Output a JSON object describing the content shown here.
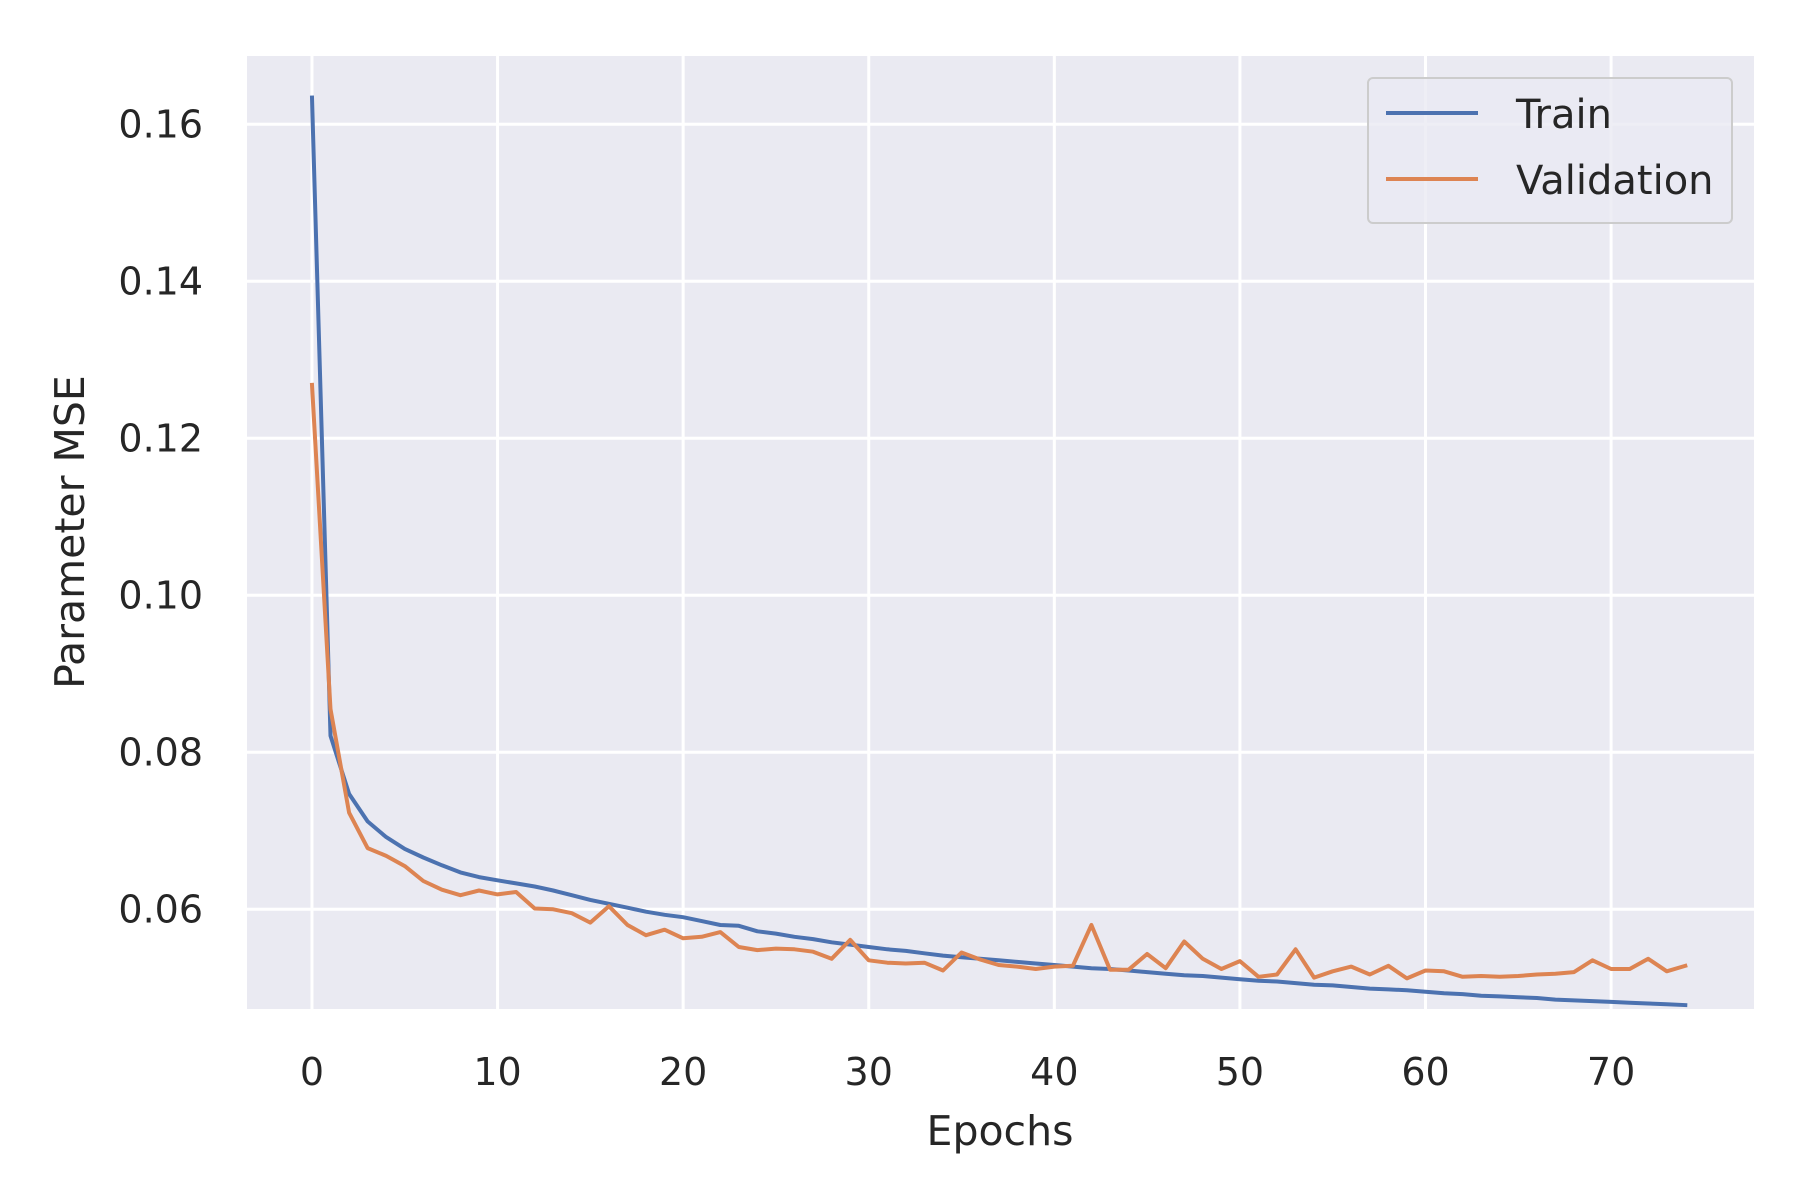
{
  "chart_data": {
    "type": "line",
    "xlabel": "Epochs",
    "ylabel": "Parameter MSE",
    "xlim": [
      -3.5,
      77.7
    ],
    "ylim": [
      0.0473,
      0.1687
    ],
    "xticks": [
      0,
      10,
      20,
      30,
      40,
      50,
      60,
      70
    ],
    "xtick_labels": [
      "0",
      "10",
      "20",
      "30",
      "40",
      "50",
      "60",
      "70"
    ],
    "yticks": [
      0.06,
      0.08,
      0.1,
      0.12,
      0.14,
      0.16
    ],
    "ytick_labels": [
      "0.06",
      "0.08",
      "0.10",
      "0.12",
      "0.14",
      "0.16"
    ],
    "grid": true,
    "legend_position": "top-right",
    "series": [
      {
        "name": "Train",
        "color": "#4c72b0",
        "x": [
          0,
          1,
          2,
          3,
          4,
          5,
          6,
          7,
          8,
          9,
          10,
          11,
          12,
          13,
          14,
          15,
          16,
          17,
          18,
          19,
          20,
          21,
          22,
          23,
          24,
          25,
          26,
          27,
          28,
          29,
          30,
          31,
          32,
          33,
          34,
          35,
          36,
          37,
          38,
          39,
          40,
          41,
          42,
          43,
          44,
          45,
          46,
          47,
          48,
          49,
          50,
          51,
          52,
          53,
          54,
          55,
          56,
          57,
          58,
          59,
          60,
          61,
          62,
          63,
          64,
          65,
          66,
          67,
          68,
          69,
          70,
          71,
          72,
          73,
          74
        ],
        "values": [
          0.1634,
          0.0821,
          0.0747,
          0.0712,
          0.0692,
          0.0677,
          0.0666,
          0.0656,
          0.0647,
          0.0641,
          0.0637,
          0.0633,
          0.0629,
          0.0624,
          0.0618,
          0.0612,
          0.0607,
          0.0602,
          0.0597,
          0.0593,
          0.059,
          0.0585,
          0.058,
          0.0579,
          0.0572,
          0.0569,
          0.0565,
          0.0562,
          0.0558,
          0.0555,
          0.0552,
          0.0549,
          0.0547,
          0.0544,
          0.0541,
          0.0539,
          0.0537,
          0.0535,
          0.0533,
          0.0531,
          0.0529,
          0.0527,
          0.0525,
          0.0524,
          0.0522,
          0.052,
          0.0518,
          0.0516,
          0.0515,
          0.0513,
          0.0511,
          0.0509,
          0.0508,
          0.0506,
          0.0504,
          0.0503,
          0.0501,
          0.0499,
          0.0498,
          0.0497,
          0.0495,
          0.0493,
          0.0492,
          0.049,
          0.0489,
          0.0488,
          0.0487,
          0.0485,
          0.0484,
          0.0483,
          0.0482,
          0.0481,
          0.048,
          0.0479,
          0.0478
        ]
      },
      {
        "name": "Validation",
        "color": "#dd8452",
        "x": [
          0,
          1,
          2,
          3,
          4,
          5,
          6,
          7,
          8,
          9,
          10,
          11,
          12,
          13,
          14,
          15,
          16,
          17,
          18,
          19,
          20,
          21,
          22,
          23,
          24,
          25,
          26,
          27,
          28,
          29,
          30,
          31,
          32,
          33,
          34,
          35,
          36,
          37,
          38,
          39,
          40,
          41,
          42,
          43,
          44,
          45,
          46,
          47,
          48,
          49,
          50,
          51,
          52,
          53,
          54,
          55,
          56,
          57,
          58,
          59,
          60,
          61,
          62,
          63,
          64,
          65,
          66,
          67,
          68,
          69,
          70,
          71,
          72,
          73,
          74
        ],
        "values": [
          0.1268,
          0.0855,
          0.0723,
          0.0678,
          0.0668,
          0.0655,
          0.0636,
          0.0625,
          0.0618,
          0.0624,
          0.0619,
          0.0622,
          0.0601,
          0.06,
          0.0595,
          0.0583,
          0.0604,
          0.058,
          0.0567,
          0.0574,
          0.0563,
          0.0565,
          0.0571,
          0.0552,
          0.0548,
          0.055,
          0.0549,
          0.0546,
          0.0537,
          0.0561,
          0.0535,
          0.0532,
          0.0531,
          0.0532,
          0.0522,
          0.0545,
          0.0536,
          0.0529,
          0.0527,
          0.0524,
          0.0527,
          0.0528,
          0.058,
          0.0523,
          0.0523,
          0.0543,
          0.0525,
          0.0559,
          0.0537,
          0.0524,
          0.0534,
          0.0514,
          0.0517,
          0.0549,
          0.0513,
          0.0521,
          0.0527,
          0.0517,
          0.0528,
          0.0512,
          0.0522,
          0.0521,
          0.0514,
          0.0515,
          0.0514,
          0.0515,
          0.0517,
          0.0518,
          0.052,
          0.0535,
          0.0524,
          0.0524,
          0.0537,
          0.0521,
          0.0528
        ]
      }
    ]
  }
}
